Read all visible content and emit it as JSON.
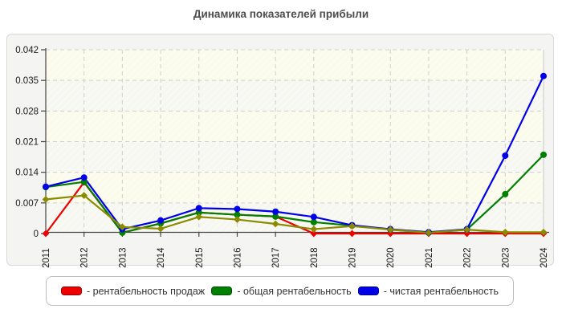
{
  "title": "Динамика показателей прибыли",
  "chart_data": {
    "type": "line",
    "categories": [
      "2011",
      "2012",
      "2013",
      "2014",
      "2015",
      "2016",
      "2017",
      "2018",
      "2019",
      "2020",
      "2021",
      "2022",
      "2023",
      "2024"
    ],
    "xlabel": "",
    "ylabel": "",
    "ylim": [
      0,
      0.042
    ],
    "yticks": [
      0,
      0.007,
      0.014,
      0.021,
      0.028,
      0.035,
      0.042
    ],
    "ytick_labels": [
      "0",
      "0.007",
      "0.014",
      "0.021",
      "0.028",
      "0.035",
      "0.042"
    ],
    "grid": true,
    "grid_style": "dashed",
    "legend_position": "bottom",
    "series": [
      {
        "name": "рентабельность продаж",
        "color": "#ee0000",
        "marker": "diamond",
        "in_legend": true,
        "values": [
          0,
          0.0117,
          0.0002,
          0.0023,
          0.0048,
          0.0043,
          0.0039,
          0,
          0,
          0,
          0,
          0,
          0,
          0
        ]
      },
      {
        "name": "общая рентабельность",
        "color": "#008000",
        "marker": "circle",
        "in_legend": true,
        "values": [
          0.0106,
          0.0118,
          0.0002,
          0.0023,
          0.0048,
          0.0043,
          0.0039,
          0.0026,
          0.0018,
          0.0009,
          0.0002,
          0.0009,
          0.009,
          0.018
        ]
      },
      {
        "name": "чистая рентабельность",
        "color": "#0000e8",
        "marker": "circle",
        "in_legend": true,
        "values": [
          0.0107,
          0.0128,
          0.001,
          0.003,
          0.0058,
          0.0056,
          0.005,
          0.0038,
          0.0019,
          0.001,
          0.0003,
          0.001,
          0.0178,
          0.036
        ]
      },
      {
        "name": "unlabeled-olive-series",
        "color": "#8b8b00",
        "marker": "diamond",
        "in_legend": false,
        "values": [
          0.0078,
          0.0087,
          0.0015,
          0.0011,
          0.0038,
          0.0032,
          0.0022,
          0.001,
          0.0017,
          0.0009,
          0.0002,
          0.0009,
          0.0003,
          0.0003
        ]
      }
    ]
  },
  "legend": {
    "items": [
      {
        "label": "- рентабельность продаж",
        "color": "#ee0000"
      },
      {
        "label": "- общая рентабельность",
        "color": "#008000"
      },
      {
        "label": "- чистая рентабельность",
        "color": "#0000e8"
      }
    ]
  },
  "colors": {
    "panel_bg": "#f4f4f3",
    "panel_border": "#d8d8d8",
    "plot_band_cream": "#fbfbec",
    "plot_band_light": "#f6f7f1",
    "gridline": "#cfcfcf",
    "axis": "#444444",
    "tick_text": "#1a1a1a",
    "title_text": "#4d4d4d"
  }
}
